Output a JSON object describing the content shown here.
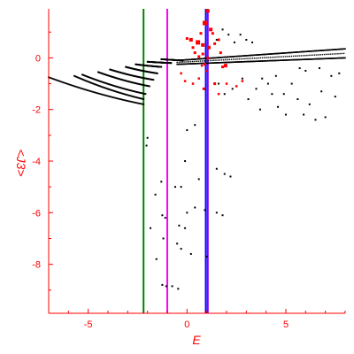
{
  "colors": {
    "axis": "#ff0000",
    "black_points": "#000000",
    "red_points": "#ff0000",
    "green_line": "#008000",
    "magenta_line": "#ff00ff",
    "blue_line": "#0000ff",
    "purple_line": "#8000ff"
  },
  "chart_data": {
    "type": "scatter",
    "title": "",
    "xlabel": "E",
    "ylabel": "<J3>",
    "xlim": [
      -7,
      8
    ],
    "ylim": [
      -9.9,
      1.9
    ],
    "x_ticks": [
      -5,
      0,
      5
    ],
    "y_ticks": [
      0,
      -2,
      -4,
      -6,
      -8
    ],
    "x_tick_labels": [
      "-5",
      "0",
      "5"
    ],
    "y_tick_labels": [
      "0",
      "-2",
      "-4",
      "-6",
      "-8"
    ],
    "grid": false,
    "vertical_lines": [
      {
        "x": -2.2,
        "color": "#008000"
      },
      {
        "x": -1.0,
        "color": "#ff00ff"
      },
      {
        "x": 0.95,
        "color": "#0000ff"
      },
      {
        "x": 1.05,
        "color": "#8000ff"
      }
    ],
    "branches": [
      {
        "x0": -7.0,
        "y0": -0.75,
        "x1": -2.2,
        "y1": -1.8,
        "curve": 0.3
      },
      {
        "x0": -5.7,
        "y0": -0.7,
        "x1": -2.2,
        "y1": -1.6,
        "curve": 0.3
      },
      {
        "x0": -5.3,
        "y0": -0.65,
        "x1": -2.1,
        "y1": -1.4,
        "curve": 0.3
      },
      {
        "x0": -4.5,
        "y0": -0.55,
        "x1": -1.9,
        "y1": -1.1,
        "curve": 0.3
      },
      {
        "x0": -3.9,
        "y0": -0.45,
        "x1": -1.7,
        "y1": -0.85,
        "curve": 0.3
      },
      {
        "x0": -3.1,
        "y0": -0.35,
        "x1": -1.5,
        "y1": -0.6,
        "curve": 0.3
      },
      {
        "x0": -2.6,
        "y0": -0.25,
        "x1": -1.3,
        "y1": -0.35,
        "curve": 0.3
      },
      {
        "x0": -2.0,
        "y0": -0.15,
        "x1": -0.8,
        "y1": -0.2,
        "curve": 0.3
      },
      {
        "x0": -1.3,
        "y0": -0.05,
        "x1": -0.2,
        "y1": -0.1,
        "curve": 0.3
      }
    ],
    "bands": [
      {
        "x0": -0.5,
        "x1": 8.0,
        "y_top0": -0.1,
        "y_top1": 0.35,
        "y_bot0": -0.25,
        "y_bot1": 0.0,
        "n": 260
      }
    ],
    "black_scatter": [
      [
        -2.0,
        -3.1
      ],
      [
        -2.05,
        -3.4
      ],
      [
        -1.6,
        -5.3
      ],
      [
        -1.3,
        -4.8
      ],
      [
        -1.25,
        -6.1
      ],
      [
        -1.1,
        -6.2
      ],
      [
        -1.85,
        -6.6
      ],
      [
        -1.55,
        -7.8
      ],
      [
        -1.2,
        -7.0
      ],
      [
        -1.25,
        -8.8
      ],
      [
        -1.05,
        -8.85
      ],
      [
        -0.75,
        -8.85
      ],
      [
        -0.45,
        -8.95
      ],
      [
        0.0,
        -2.8
      ],
      [
        -0.1,
        -4.0
      ],
      [
        -0.6,
        -5.0
      ],
      [
        -0.3,
        -5.0
      ],
      [
        0.0,
        -6.0
      ],
      [
        -0.4,
        -6.5
      ],
      [
        -0.1,
        -6.6
      ],
      [
        -0.5,
        -7.2
      ],
      [
        -0.3,
        -7.4
      ],
      [
        0.2,
        -7.6
      ],
      [
        0.4,
        -5.8
      ],
      [
        0.6,
        -4.7
      ],
      [
        0.9,
        -5.9
      ],
      [
        1.0,
        -7.7
      ],
      [
        1.5,
        -6.0
      ],
      [
        1.8,
        -6.1
      ],
      [
        1.5,
        -4.3
      ],
      [
        1.9,
        -4.5
      ],
      [
        2.2,
        -4.6
      ],
      [
        0.4,
        -2.6
      ],
      [
        1.6,
        -1.0
      ],
      [
        1.9,
        -1.4
      ],
      [
        2.3,
        -1.2
      ],
      [
        2.8,
        -0.8
      ],
      [
        3.1,
        -1.6
      ],
      [
        3.5,
        -1.2
      ],
      [
        3.8,
        -0.8
      ],
      [
        3.7,
        -2.0
      ],
      [
        4.1,
        -1.0
      ],
      [
        4.3,
        -1.4
      ],
      [
        4.6,
        -1.9
      ],
      [
        4.9,
        -1.4
      ],
      [
        5.0,
        -2.2
      ],
      [
        5.3,
        -1.0
      ],
      [
        5.6,
        -1.6
      ],
      [
        5.9,
        -2.2
      ],
      [
        6.2,
        -1.8
      ],
      [
        6.5,
        -2.4
      ],
      [
        6.8,
        -1.3
      ],
      [
        7.0,
        -2.3
      ],
      [
        7.3,
        -0.7
      ],
      [
        7.5,
        -1.5
      ],
      [
        7.7,
        -0.6
      ],
      [
        6.7,
        -0.4
      ],
      [
        6.0,
        -0.5
      ],
      [
        5.7,
        -0.4
      ],
      [
        4.5,
        -0.7
      ],
      [
        1.5,
        0.7
      ],
      [
        1.8,
        1.1
      ],
      [
        2.1,
        0.9
      ],
      [
        2.4,
        0.6
      ],
      [
        2.7,
        0.9
      ],
      [
        3.0,
        0.7
      ],
      [
        3.3,
        0.6
      ]
    ],
    "red_scatter": [
      [
        1.05,
        1.82,
        4
      ],
      [
        0.9,
        1.35,
        5
      ],
      [
        1.2,
        1.1,
        4
      ],
      [
        0.7,
        0.95,
        3
      ],
      [
        0.0,
        0.75,
        3
      ],
      [
        0.2,
        0.7,
        4
      ],
      [
        0.55,
        0.6,
        5
      ],
      [
        0.8,
        0.5,
        4
      ],
      [
        1.1,
        0.4,
        4
      ],
      [
        1.4,
        0.55,
        3
      ],
      [
        1.7,
        0.2,
        3
      ],
      [
        1.05,
        0.0,
        3
      ],
      [
        0.8,
        0.15,
        3
      ],
      [
        0.4,
        0.2,
        3
      ],
      [
        0.6,
        0.05,
        3
      ],
      [
        0.9,
        -0.25,
        3
      ],
      [
        0.85,
        -1.2,
        3
      ],
      [
        0.75,
        -0.3,
        2.5
      ],
      [
        1.0,
        -0.5,
        2.5
      ],
      [
        -0.1,
        -0.9,
        2.5
      ],
      [
        0.3,
        -1.0,
        2.5
      ],
      [
        1.95,
        -0.3,
        4
      ],
      [
        1.8,
        -0.35,
        3
      ],
      [
        1.4,
        -1.0,
        3
      ],
      [
        2.0,
        -1.0,
        2.5
      ],
      [
        2.5,
        -1.1,
        2.5
      ],
      [
        2.8,
        -0.9,
        2.5
      ],
      [
        1.6,
        -1.4,
        2.5
      ],
      [
        0.6,
        -0.8,
        2.5
      ],
      [
        1.3,
        0.95,
        3
      ],
      [
        1.6,
        0.7,
        3
      ],
      [
        0.3,
        0.4,
        3
      ],
      [
        -0.3,
        -0.6,
        2.5
      ]
    ]
  }
}
